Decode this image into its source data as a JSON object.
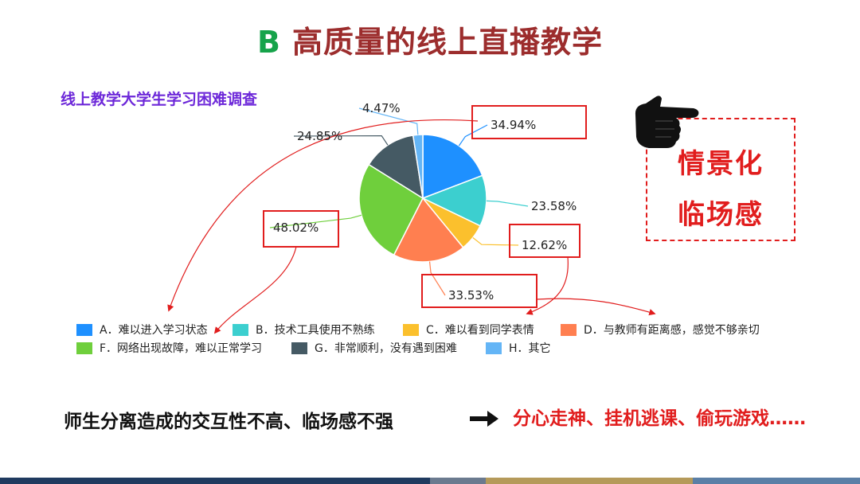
{
  "header": {
    "letter": "B",
    "title": "高质量的线上直播教学"
  },
  "subtitle": "线上教学大学生学习困难调查",
  "chart_data": {
    "type": "pie",
    "title": "线上教学大学生学习困难调查",
    "slices": [
      {
        "key": "A",
        "label": "A．难以进入学习状态",
        "value": 34.94,
        "display": "34.94%",
        "color": "#1e90ff"
      },
      {
        "key": "B",
        "label": "B．技术工具使用不熟练",
        "value": 23.58,
        "display": "23.58%",
        "color": "#3ccfcf"
      },
      {
        "key": "C",
        "label": "C．难以看到同学表情",
        "value": 12.62,
        "display": "12.62%",
        "color": "#fbc02d"
      },
      {
        "key": "D",
        "label": "D．与教师有距离感，感觉不够亲切",
        "value": 33.53,
        "display": "33.53%",
        "color": "#ff7f50"
      },
      {
        "key": "F",
        "label": "F．网络出现故障，难以正常学习",
        "value": 48.02,
        "display": "48.02%",
        "color": "#6fcf3c"
      },
      {
        "key": "G",
        "label": "G．非常顺利，没有遇到困难",
        "value": 24.85,
        "display": "24.85%",
        "color": "#455a64"
      },
      {
        "key": "H",
        "label": "H．其它",
        "value": 4.47,
        "display": "4.47%",
        "color": "#64b5f6"
      }
    ],
    "legend_position": "bottom"
  },
  "callout": {
    "line1": "情景化",
    "line2": "临场感"
  },
  "bottom": {
    "left": "师生分离造成的交互性不高、临场感不强",
    "right": "分心走神、挂机逃课、偷玩游戏……"
  },
  "colors": {
    "title": "#9c2d2d",
    "letter": "#16a34a",
    "subtitle": "#6d28d9",
    "accent_red": "#e11d1d"
  },
  "icons": {
    "hand": "pointing-hand-icon",
    "arrow": "right-arrow-icon"
  }
}
